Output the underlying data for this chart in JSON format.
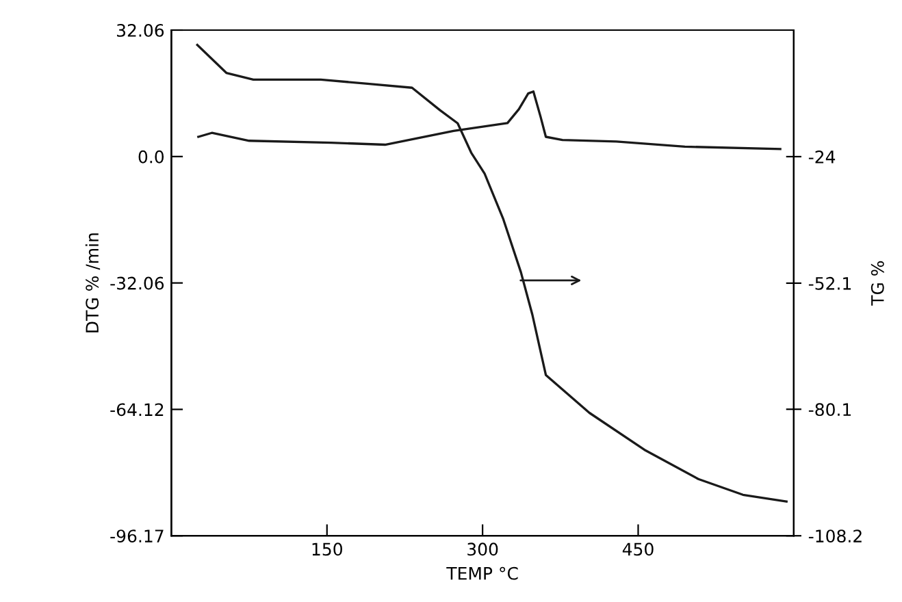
{
  "chart_data": {
    "type": "line",
    "xlabel": "TEMP °C",
    "ylabel": "DTG % /min",
    "y2label": "TG %",
    "xlim": [
      0,
      600
    ],
    "xticks": [
      150,
      300,
      450
    ],
    "ylim": [
      -96.17,
      32.06
    ],
    "yticks": [
      32.06,
      {
        "value": 0,
        "label": "0.0"
      },
      -32.06,
      -64.12,
      -96.17
    ],
    "y2lim": [
      -108.2,
      4.1
    ],
    "y2ticks": [
      -24,
      -52.1,
      -80.1,
      -108.2
    ],
    "grid": false,
    "marker": "none",
    "line_style": "solid",
    "series": [
      {
        "color": "#1a1a1a",
        "x": [
          26,
          39,
          75,
          154,
          206,
          272,
          324,
          335,
          344,
          349,
          356,
          361,
          377,
          429,
          495,
          587
        ],
        "values": [
          5,
          6,
          4,
          3.5,
          3,
          6.5,
          8.5,
          12,
          16,
          16.5,
          10,
          5,
          4.2,
          3.8,
          2.5,
          1.9
        ]
      },
      {
        "color": "#1a1a1a",
        "axis": "y2",
        "x": [
          25,
          53,
          79,
          144,
          189,
          232,
          259,
          276,
          289,
          302,
          320,
          337,
          348,
          361,
          403,
          456,
          508,
          551,
          593
        ],
        "values": [
          0.8,
          -5.4,
          -6.9,
          -6.9,
          -7.8,
          -8.7,
          -13.7,
          -16.6,
          -23.1,
          -27.8,
          -37.9,
          -49.7,
          -59.1,
          -72.5,
          -80.9,
          -89.1,
          -95.6,
          -99.1,
          -100.6
        ]
      }
    ]
  }
}
